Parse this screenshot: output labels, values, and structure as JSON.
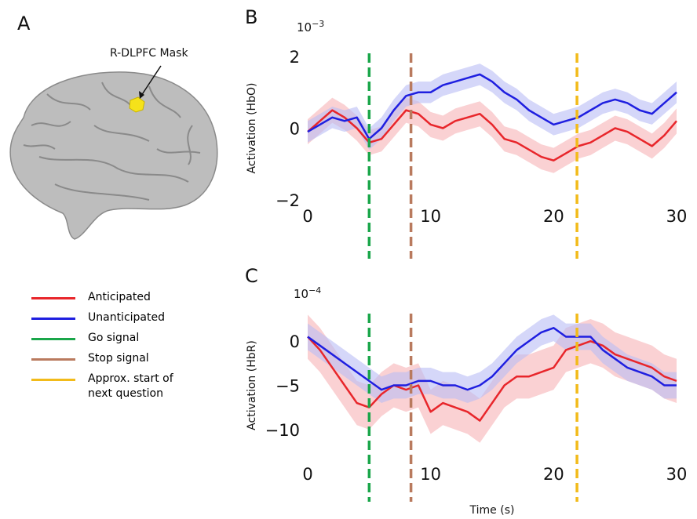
{
  "figure": {
    "panel": "A",
    "annotation": "R-DLPFC Mask"
  },
  "chart_data": [
    {
      "type": "line",
      "panel": "B",
      "ylabel": "Activation (HbO)",
      "y_multiplier": {
        "base": "10",
        "exponent": "−3"
      },
      "x": [
        0,
        1,
        2,
        3,
        4,
        5,
        6,
        7,
        8,
        9,
        10,
        11,
        12,
        13,
        14,
        15,
        16,
        17,
        18,
        19,
        20,
        21,
        22,
        23,
        24,
        25,
        26,
        27,
        28,
        29,
        30
      ],
      "xlim": [
        0,
        30
      ],
      "xticks": [
        0,
        10,
        20,
        30
      ],
      "ylim": [
        -2,
        2
      ],
      "yticks": [
        {
          "value": -2,
          "label": "−2"
        },
        0,
        2
      ],
      "series": [
        {
          "name": "Anticipated",
          "color": "#e8262b",
          "band_color": "#f7b3b6",
          "error": 0.35,
          "values": [
            -0.1,
            0.2,
            0.5,
            0.3,
            0.0,
            -0.4,
            -0.3,
            0.1,
            0.5,
            0.4,
            0.1,
            0.0,
            0.2,
            0.3,
            0.4,
            0.1,
            -0.3,
            -0.4,
            -0.6,
            -0.8,
            -0.9,
            -0.7,
            -0.5,
            -0.4,
            -0.2,
            0.0,
            -0.1,
            -0.3,
            -0.5,
            -0.2,
            0.2
          ]
        },
        {
          "name": "Unanticipated",
          "color": "#1f1fe0",
          "band_color": "#b9bdf5",
          "error": 0.3,
          "values": [
            -0.1,
            0.1,
            0.3,
            0.2,
            0.3,
            -0.3,
            0.0,
            0.5,
            0.9,
            1.0,
            1.0,
            1.2,
            1.3,
            1.4,
            1.5,
            1.3,
            1.0,
            0.8,
            0.5,
            0.3,
            0.1,
            0.2,
            0.3,
            0.5,
            0.7,
            0.8,
            0.7,
            0.5,
            0.4,
            0.7,
            1.0
          ]
        }
      ],
      "vlines": [
        {
          "name": "Go signal",
          "color": "#1aa64a",
          "x": 5.0
        },
        {
          "name": "Stop signal",
          "color": "#b97a5e",
          "x": 8.4
        },
        {
          "name": "Approx. start of next question",
          "color": "#f2bb1a",
          "x": 21.9
        }
      ]
    },
    {
      "type": "line",
      "panel": "C",
      "ylabel": "Activation (HbR)",
      "xlabel": "Time (s)",
      "y_multiplier": {
        "base": "10",
        "exponent": "−4"
      },
      "x": [
        0,
        1,
        2,
        3,
        4,
        5,
        6,
        7,
        8,
        9,
        10,
        11,
        12,
        13,
        14,
        15,
        16,
        17,
        18,
        19,
        20,
        21,
        22,
        23,
        24,
        25,
        26,
        27,
        28,
        29,
        30
      ],
      "xlim": [
        0,
        30
      ],
      "xticks": [
        0,
        10,
        20,
        30
      ],
      "ylim": [
        -12.5,
        2.5
      ],
      "yticks": [
        {
          "value": -10,
          "label": "−10"
        },
        {
          "value": -5,
          "label": "−5"
        },
        0
      ],
      "series": [
        {
          "color": "#e8262b",
          "band_color": "#f7b3b6",
          "error": 2.5,
          "values": [
            0.5,
            -1,
            -3,
            -5,
            -7,
            -7.5,
            -6,
            -5,
            -5.5,
            -5,
            -8,
            -7,
            -7.5,
            -8,
            -9,
            -7,
            -5,
            -4,
            -4,
            -3.5,
            -3,
            -1,
            -0.5,
            0,
            -0.5,
            -1.5,
            -2,
            -2.5,
            -3,
            -4,
            -4.5
          ]
        },
        {
          "color": "#1f1fe0",
          "band_color": "#b9bdf5",
          "error": 1.5,
          "values": [
            0.5,
            -0.5,
            -1.5,
            -2.5,
            -3.5,
            -4.5,
            -5.5,
            -5,
            -5,
            -4.5,
            -4.5,
            -5,
            -5,
            -5.5,
            -5,
            -4,
            -2.5,
            -1,
            0,
            1,
            1.5,
            0.5,
            0.5,
            0.5,
            -1,
            -2,
            -3,
            -3.5,
            -4,
            -5,
            -5
          ]
        }
      ],
      "vlines": [
        {
          "color": "#1aa64a",
          "x": 5.0
        },
        {
          "color": "#b97a5e",
          "x": 8.4
        },
        {
          "color": "#f2bb1a",
          "x": 21.9
        }
      ]
    }
  ]
}
